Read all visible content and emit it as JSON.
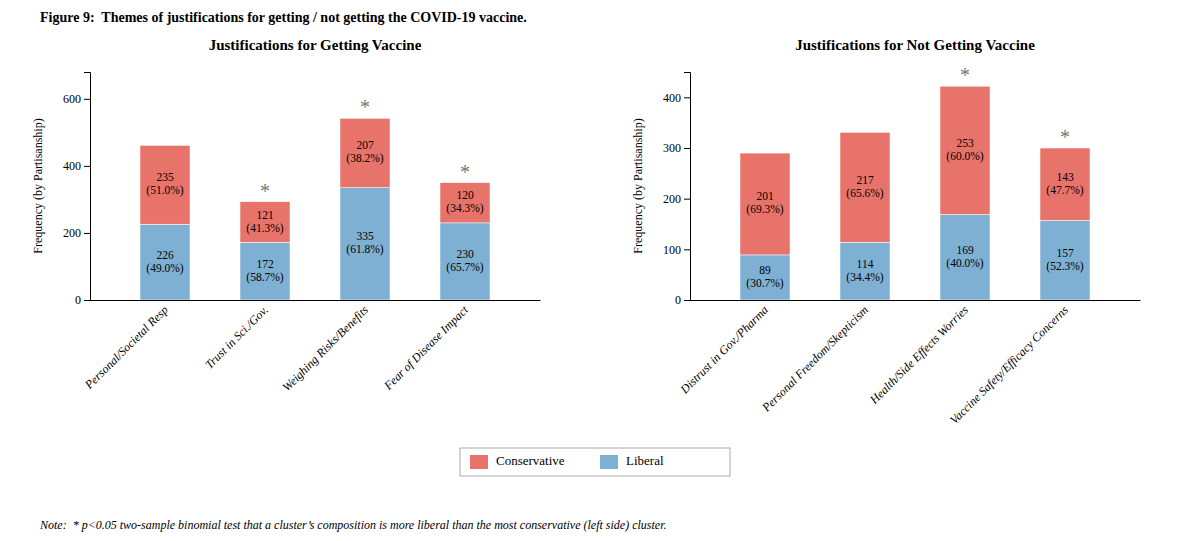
{
  "title": "Figure 9:  Themes of justifications for getting / not getting the COVID-19 vaccine.",
  "annotations": [
    "Note:  * p<0.05 two-sample binomial test that a cluster’s composition is more liberal than the most conservative (left side) cluster."
  ],
  "legend": "bottom",
  "chart_data": [
    {
      "type": "bar",
      "stacked": true,
      "data_labels": true,
      "title": "Justifications for Getting Vaccine",
      "ylabel": "Frequency (by Partisanship)",
      "categories": [
        "Personal/Societal Resp",
        "Trust in Sci./Gov.",
        "Weighing Risks/Benefits",
        "Fear of Disease Impact"
      ],
      "series": [
        {
          "name": "Liberal",
          "color": "#7EB0D4",
          "values": [
            226,
            172,
            335,
            230
          ],
          "value_labels": [
            "226\n(49.0%)",
            "172\n(58.7%)",
            "335\n(61.8%)",
            "230\n(65.7%)"
          ]
        },
        {
          "name": "Conservative",
          "color": "#E8736A",
          "values": [
            235,
            121,
            207,
            120
          ],
          "value_labels": [
            "235\n(51.0%)",
            "121\n(41.3%)",
            "207\n(38.2%)",
            "120\n(34.3%)"
          ]
        }
      ],
      "annotations": [
        {
          "text": "*",
          "category": "Trust in Sci./Gov."
        },
        {
          "text": "*",
          "category": "Weighing Risks/Benefits"
        },
        {
          "text": "*",
          "category": "Fear of Disease Impact"
        }
      ],
      "ylim": [
        0,
        680
      ],
      "yticks": [
        0,
        200,
        400,
        600
      ]
    },
    {
      "type": "bar",
      "stacked": true,
      "data_labels": true,
      "title": "Justifications for Not Getting Vaccine",
      "ylabel": "Frequency (by Partisanship)",
      "categories": [
        "Distrust in Gov./Pharma",
        "Personal Freedom/Skepticism",
        "Health/Side Effects Worries",
        "Vaccine Safety/Efficacy Concerns"
      ],
      "series": [
        {
          "name": "Liberal",
          "color": "#7EB0D4",
          "values": [
            89,
            114,
            169,
            157
          ],
          "value_labels": [
            "89\n(30.7%)",
            "114\n(34.4%)",
            "169\n(40.0%)",
            "157\n(52.3%)"
          ]
        },
        {
          "name": "Conservative",
          "color": "#E8736A",
          "values": [
            201,
            217,
            253,
            143
          ],
          "value_labels": [
            "201\n(69.3%)",
            "217\n(65.6%)",
            "253\n(60.0%)",
            "143\n(47.7%)"
          ]
        }
      ],
      "annotations": [
        {
          "text": "*",
          "category": "Health/Side Effects Worries"
        },
        {
          "text": "*",
          "category": "Vaccine Safety/Efficacy Concerns"
        }
      ],
      "ylim": [
        0,
        450
      ],
      "yticks": [
        0,
        100,
        200,
        300,
        400
      ]
    }
  ]
}
